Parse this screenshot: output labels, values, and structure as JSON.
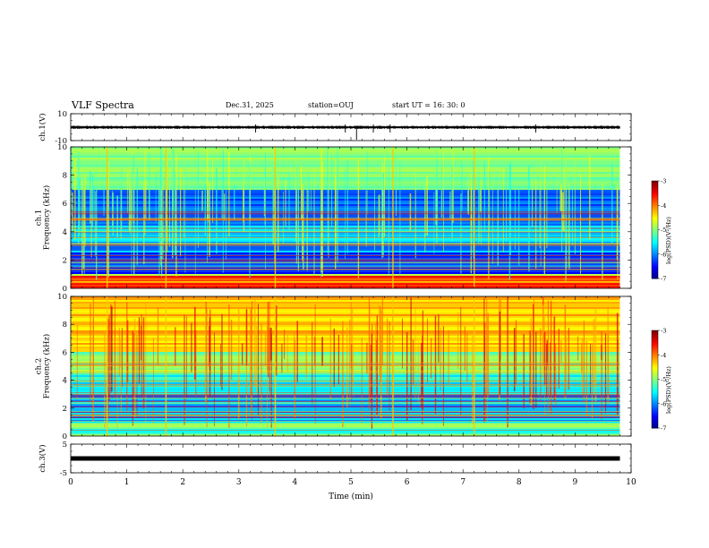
{
  "header": {
    "title": "VLF Spectra",
    "date": "Dec.31, 2025",
    "station": "station=OUJ",
    "start": "start  UT  =   16: 30: 0"
  },
  "chart_data": [
    {
      "type": "line",
      "ylabel": "ch.1(V)",
      "ylim": [
        -10,
        10
      ],
      "y_ticks": [
        "10",
        "-10"
      ],
      "baseline": 0
    },
    {
      "type": "heatmap",
      "ylabel": "ch.1\nFrequency (kHz)",
      "ylim": [
        0,
        10
      ],
      "y_ticks": [
        "0",
        "2",
        "4",
        "6",
        "8",
        "10"
      ],
      "colorbar": {
        "label": "log(PSD)(V²/Hz)",
        "range": [
          -7,
          -3
        ],
        "ticks": [
          "-3",
          "-4",
          "-5",
          "-6",
          "-7"
        ]
      }
    },
    {
      "type": "heatmap",
      "ylabel": "ch.2\nFrequency (kHz)",
      "ylim": [
        0,
        10
      ],
      "y_ticks": [
        "0",
        "2",
        "4",
        "6",
        "8",
        "10"
      ],
      "colorbar": {
        "label": "log(PSD)(V²/Hz)",
        "range": [
          -7,
          -3
        ],
        "ticks": [
          "-3",
          "-4",
          "-5",
          "-6",
          "-7"
        ]
      }
    },
    {
      "type": "line",
      "ylabel": "ch.3(V)",
      "ylim": [
        -5,
        5
      ],
      "y_ticks": [
        "5",
        "-5"
      ],
      "baseline": 0
    }
  ],
  "x_axis": {
    "label": "Time  (min)",
    "range": [
      0,
      10
    ],
    "ticks": [
      "0",
      "1",
      "2",
      "3",
      "4",
      "5",
      "6",
      "7",
      "8",
      "9",
      "10"
    ],
    "data_end": 9.8
  }
}
